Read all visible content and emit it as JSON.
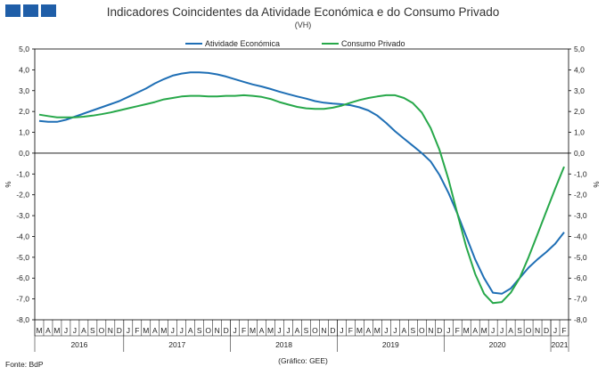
{
  "header": {
    "title": "Indicadores Coincidentes da Atividade Económica e do Consumo Privado",
    "subtitle": "(VH)"
  },
  "footer": {
    "source": "Fonte: BdP",
    "credit": "(Gráfico: GEE)"
  },
  "colors": {
    "atividade": "#1f6fb5",
    "consumo": "#27a84a",
    "logo": "#1f5ea8"
  },
  "chart_data": {
    "type": "line",
    "title": "Indicadores Coincidentes da Atividade Económica e do Consumo Privado",
    "subtitle": "(VH)",
    "ylabel_left": "%",
    "ylabel_right": "%",
    "ylim": [
      -8.0,
      5.0
    ],
    "yticks": [
      "5,0",
      "4,0",
      "3,0",
      "2,0",
      "1,0",
      "0,0",
      "-1,0",
      "-2,0",
      "-3,0",
      "-4,0",
      "-5,0",
      "-6,0",
      "-7,0",
      "-8,0"
    ],
    "legend_position": "top-center",
    "month_labels": [
      "M",
      "A",
      "M",
      "J",
      "J",
      "A",
      "S",
      "O",
      "N",
      "D",
      "J",
      "F",
      "M",
      "A",
      "M",
      "J",
      "J",
      "A",
      "S",
      "O",
      "N",
      "D",
      "J",
      "F",
      "M",
      "A",
      "M",
      "J",
      "J",
      "A",
      "S",
      "O",
      "N",
      "D",
      "J",
      "F",
      "M",
      "A",
      "M",
      "J",
      "J",
      "A",
      "S",
      "O",
      "N",
      "D",
      "J",
      "F",
      "M",
      "A",
      "M",
      "J",
      "J",
      "A",
      "S",
      "O",
      "N",
      "D",
      "J",
      "F"
    ],
    "year_labels": [
      {
        "label": "2016",
        "start": 0,
        "count": 10
      },
      {
        "label": "2017",
        "start": 10,
        "count": 12
      },
      {
        "label": "2018",
        "start": 22,
        "count": 12
      },
      {
        "label": "2019",
        "start": 34,
        "count": 12
      },
      {
        "label": "2020",
        "start": 46,
        "count": 12
      },
      {
        "label": "2021",
        "start": 58,
        "count": 2
      }
    ],
    "x": [
      "2016-03",
      "2016-04",
      "2016-05",
      "2016-06",
      "2016-07",
      "2016-08",
      "2016-09",
      "2016-10",
      "2016-11",
      "2016-12",
      "2017-01",
      "2017-02",
      "2017-03",
      "2017-04",
      "2017-05",
      "2017-06",
      "2017-07",
      "2017-08",
      "2017-09",
      "2017-10",
      "2017-11",
      "2017-12",
      "2018-01",
      "2018-02",
      "2018-03",
      "2018-04",
      "2018-05",
      "2018-06",
      "2018-07",
      "2018-08",
      "2018-09",
      "2018-10",
      "2018-11",
      "2018-12",
      "2019-01",
      "2019-02",
      "2019-03",
      "2019-04",
      "2019-05",
      "2019-06",
      "2019-07",
      "2019-08",
      "2019-09",
      "2019-10",
      "2019-11",
      "2019-12",
      "2020-01",
      "2020-02",
      "2020-03",
      "2020-04",
      "2020-05",
      "2020-06",
      "2020-07",
      "2020-08",
      "2020-09",
      "2020-10",
      "2020-11",
      "2020-12",
      "2021-01",
      "2021-02"
    ],
    "series": [
      {
        "name": "Atividade Económica",
        "color": "#1f6fb5",
        "values": [
          1.55,
          1.5,
          1.5,
          1.6,
          1.75,
          1.9,
          2.05,
          2.2,
          2.35,
          2.5,
          2.7,
          2.9,
          3.1,
          3.35,
          3.55,
          3.72,
          3.82,
          3.88,
          3.88,
          3.85,
          3.78,
          3.68,
          3.55,
          3.42,
          3.3,
          3.2,
          3.08,
          2.95,
          2.83,
          2.72,
          2.62,
          2.5,
          2.42,
          2.38,
          2.35,
          2.3,
          2.2,
          2.05,
          1.8,
          1.45,
          1.05,
          0.7,
          0.35,
          0.0,
          -0.4,
          -1.05,
          -1.9,
          -2.9,
          -4.0,
          -5.1,
          -6.0,
          -6.7,
          -6.75,
          -6.5,
          -6.0,
          -5.5,
          -5.1,
          -4.75,
          -4.35,
          -3.8
        ]
      },
      {
        "name": "Consumo Privado",
        "color": "#27a84a",
        "values": [
          1.85,
          1.78,
          1.72,
          1.72,
          1.72,
          1.75,
          1.8,
          1.87,
          1.95,
          2.05,
          2.15,
          2.25,
          2.35,
          2.45,
          2.58,
          2.65,
          2.72,
          2.75,
          2.75,
          2.72,
          2.72,
          2.75,
          2.75,
          2.78,
          2.75,
          2.7,
          2.6,
          2.45,
          2.33,
          2.22,
          2.15,
          2.12,
          2.12,
          2.18,
          2.28,
          2.42,
          2.55,
          2.65,
          2.72,
          2.78,
          2.78,
          2.65,
          2.4,
          1.95,
          1.2,
          0.15,
          -1.25,
          -2.9,
          -4.5,
          -5.8,
          -6.75,
          -7.2,
          -7.15,
          -6.7,
          -6.0,
          -5.0,
          -3.9,
          -2.8,
          -1.7,
          -0.65
        ]
      }
    ]
  }
}
